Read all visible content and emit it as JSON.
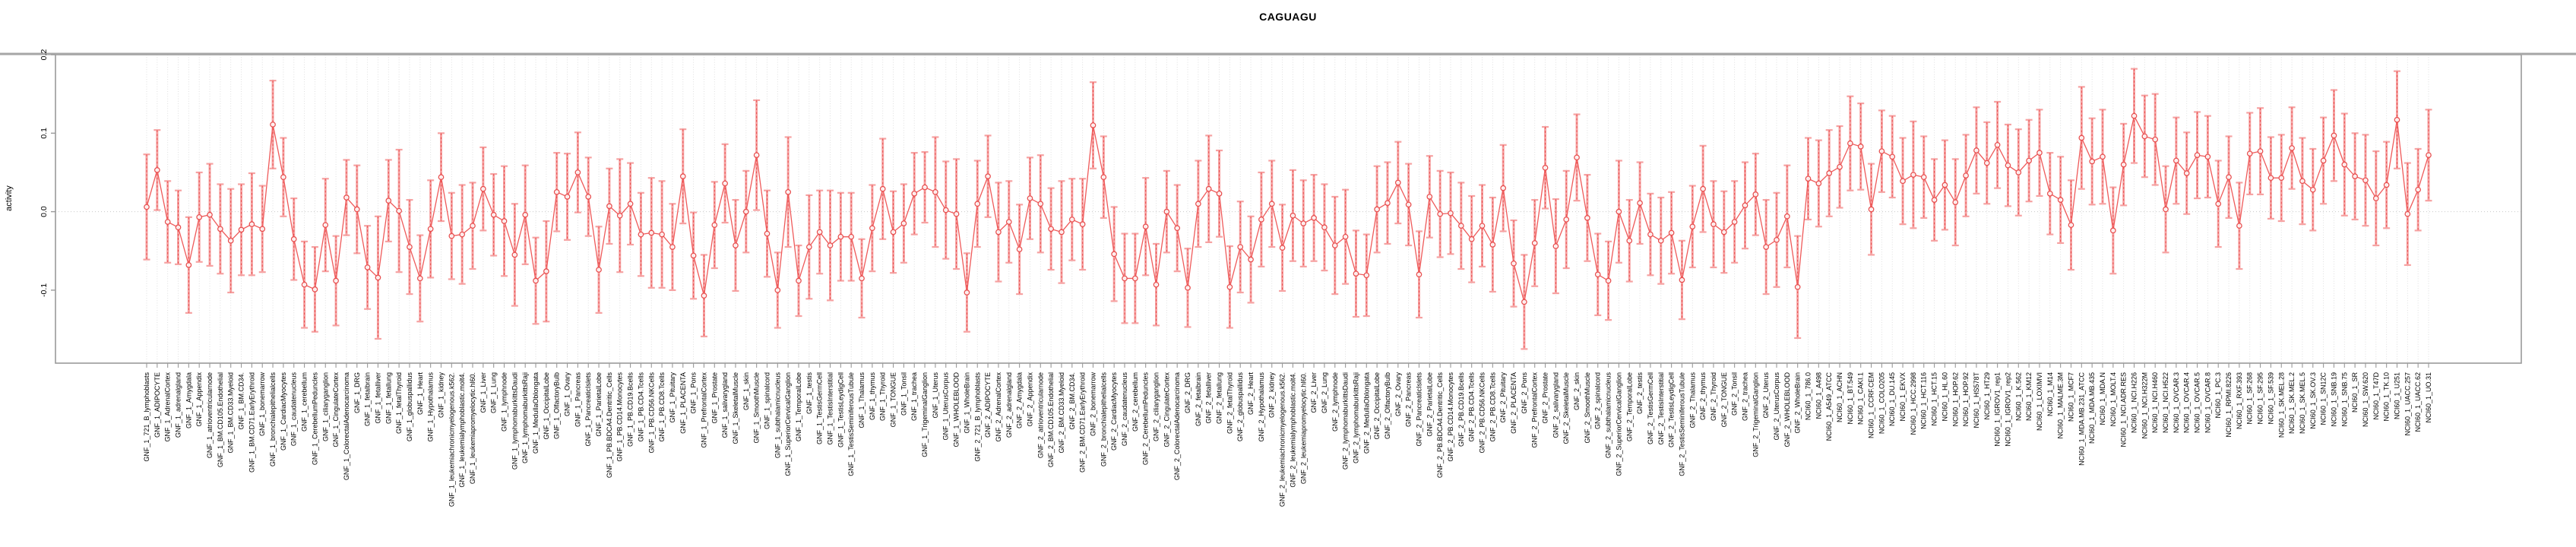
{
  "chart_data": {
    "type": "line",
    "subtype": "points-with-error-bars",
    "title": "CAGUAGU",
    "xlabel": "",
    "ylabel": "activity",
    "yticks": [
      0.2,
      0.1,
      0.0,
      -0.1
    ],
    "ylim": [
      -0.193,
      0.2
    ],
    "grid": "vertical-dotted-per-category",
    "zero_line": "dotted",
    "legend": "none",
    "colors": {
      "point": "#e85050",
      "line": "#ef5a5a",
      "whisker": "#f6a2a2",
      "dashed": "#e85050",
      "grid": "#dcdcdc",
      "zero": "#c8c8c8",
      "box": "#9a9a9a",
      "text": "#000000"
    },
    "categories": [
      "GNF_1_721_B_lymphoblasts",
      "GNF_1_ADIPOCYTE",
      "GNF_1_AdrenalCortex",
      "GNF_1_adrenalgland",
      "GNF_1_Amygdala",
      "GNF_1_Appendix",
      "GNF_1_atrioventricularnode",
      "GNF_1_BM.CD105.Endothelial",
      "GNF_1_BM.CD33.Myeloid",
      "GNF_1_BM.CD34.",
      "GNF_1_BM.CD71.EarlyErythroid",
      "GNF_1_bonemarrow",
      "GNF_1_bronchialepithelialcells",
      "GNF_1_CardiacMyocytes",
      "GNF_1_caudatenucleus",
      "GNF_1_cerebellum",
      "GNF_1_CerebellumPeduncles",
      "GNF_1_ciliaryganglion",
      "GNF_1_CingulateCortex",
      "GNF_1_ColorectalAdenocarcinoma",
      "GNF_1_DRG",
      "GNF_1_fetalbrain",
      "GNF_1_fetalliver",
      "GNF_1_fetallung",
      "GNF_1_fetalThyroid",
      "GNF_1_globuspallidus",
      "GNF_1_Heart",
      "GNF_1_Hypothalamus",
      "GNF_1_kidney",
      "GNF_1_leukemiachronicmyelogenous.k562.",
      "GNF_1_leukemialymphoblastic.molt4.",
      "GNF_1_leukemiapromyelocytic.hl60.",
      "GNF_1_Liver",
      "GNF_1_Lung",
      "GNF_1_lymphnode",
      "GNF_1_lymphomaburkittsDaudi",
      "GNF_1_lymphomaburkittsRaji",
      "GNF_1_MedullaOblongata",
      "GNF_1_OccipitalLobe",
      "GNF_1_OlfactoryBulb",
      "GNF_1_Ovary",
      "GNF_1_Pancreas",
      "GNF_1_PancreaticIslets",
      "GNF_1_ParietalLobe",
      "GNF_1_PB.BDCA4.Dentritic_Cells",
      "GNF_1_PB.CD14.Monocytes",
      "GNF_1_PB.CD19.Bcells",
      "GNF_1_PB.CD4.Tcells",
      "GNF_1_PB.CD56.NKCells",
      "GNF_1_PB.CD8.Tcells",
      "GNF_1_Pituitary",
      "GNF_1_PLACENTA",
      "GNF_1_Pons",
      "GNF_1_PrefrontalCortex",
      "GNF_1_Prostate",
      "GNF_1_salivarygland",
      "GNF_1_SkeletalMuscle",
      "GNF_1_skin",
      "GNF_1_SmoothMuscle",
      "GNF_1_spinalcord",
      "GNF_1_subthalamicnucleus",
      "GNF_1_SuperiorCervicalGanglion",
      "GNF_1_TemporalLobe",
      "GNF_1_testis",
      "GNF_1_TestisGermCell",
      "GNF_1_TestisInterstitial",
      "GNF_1_TestisLeydigCell",
      "GNF_1_TestisSeminiferousTubule",
      "GNF_1_Thalamus",
      "GNF_1_thymus",
      "GNF_1_Thyroid",
      "GNF_1_TONGUE",
      "GNF_1_Tonsil",
      "GNF_1_trachea",
      "GNF_1_TrigeminalGanglion",
      "GNF_1_Uterus",
      "GNF_1_UterusCorpus",
      "GNF_1_WHOLEBLOOD",
      "GNF_1_WholeBrain",
      "GNF_2_721_B_lymphoblasts",
      "GNF_2_ADIPOCYTE",
      "GNF_2_AdrenalCortex",
      "GNF_2_adrenalgland",
      "GNF_2_Amygdala",
      "GNF_2_Appendix",
      "GNF_2_atrioventricularnode",
      "GNF_2_BM.CD105.Endothelial",
      "GNF_2_BM.CD33.Myeloid",
      "GNF_2_BM.CD34.",
      "GNF_2_BM.CD71.EarlyErythroid",
      "GNF_2_bonemarrow",
      "GNF_2_bronchialepithelialcells",
      "GNF_2_CardiacMyocytes",
      "GNF_2_caudatenucleus",
      "GNF_2_cerebellum",
      "GNF_2_CerebellumPeduncles",
      "GNF_2_ciliaryganglion",
      "GNF_2_CingulateCortex",
      "GNF_2_ColorectalAdenocarcinoma",
      "GNF_2_DRG",
      "GNF_2_fetalbrain",
      "GNF_2_fetalliver",
      "GNF_2_fetallung",
      "GNF_2_fetalThyroid",
      "GNF_2_globuspallidus",
      "GNF_2_Heart",
      "GNF_2_Hypothalamus",
      "GNF_2_kidney",
      "GNF_2_leukemiachronicmyelogenous.k562.",
      "GNF_2_leukemialymphoblastic.molt4.",
      "GNF_2_leukemiapromyelocytic.hl60.",
      "GNF_2_Liver",
      "GNF_2_Lung",
      "GNF_2_lymphnode",
      "GNF_2_lymphomaburkittsDaudi",
      "GNF_2_lymphomaburkittsRaji",
      "GNF_2_MedullaOblongata",
      "GNF_2_OccipitalLobe",
      "GNF_2_OlfactoryBulb",
      "GNF_2_Ovary",
      "GNF_2_Pancreas",
      "GNF_2_PancreaticIslets",
      "GNF_2_ParietalLobe",
      "GNF_2_PB.BDCA4.Dentritic_Cells",
      "GNF_2_PB.CD14.Monocytes",
      "GNF_2_PB.CD19.Bcells",
      "GNF_2_PB.CD4.Tcells",
      "GNF_2_PB.CD56.NKCells",
      "GNF_2_PB.CD8.Tcells",
      "GNF_2_Pituitary",
      "GNF_2_PLACENTA",
      "GNF_2_Pons",
      "GNF_2_PrefrontalCortex",
      "GNF_2_Prostate",
      "GNF_2_salivarygland",
      "GNF_2_SkeletalMuscle",
      "GNF_2_skin",
      "GNF_2_SmoothMuscle",
      "GNF_2_spinalcord",
      "GNF_2_subthalamicnucleus",
      "GNF_2_SuperiorCervicalGanglion",
      "GNF_2_TemporalLobe",
      "GNF_2_testis",
      "GNF_2_TestisGermCell",
      "GNF_2_TestisInterstitial",
      "GNF_2_TestisLeydigCell",
      "GNF_2_TestisSeminiferousTubule",
      "GNF_2_Thalamus",
      "GNF_2_thymus",
      "GNF_2_Thyroid",
      "GNF_2_TONGUE",
      "GNF_2_Tonsil",
      "GNF_2_trachea",
      "GNF_2_TrigeminalGanglion",
      "GNF_2_Uterus",
      "GNF_2_UterusCorpus",
      "GNF_2_WHOLEBLOOD",
      "GNF_2_WholeBrain",
      "NCI60_1_786.0",
      "NCI60_1_A498",
      "NCI60_1_A549_ATCC",
      "NCI60_1_ACHN",
      "NCI60_1_BT.549",
      "NCI60_1_CAKI.1",
      "NCI60_1_CCRF.CEM",
      "NCI60_1_COLO205",
      "NCI60_1_DU.145",
      "NCI60_1_EKVX",
      "NCI60_1_HCC.2998",
      "NCI60_1_HCT.116",
      "NCI60_1_HCT.15",
      "NCI60_1_HL.60",
      "NCI60_1_HOP.62",
      "NCI60_1_HOP.92",
      "NCI60_1_HS578T",
      "NCI60_1_HT29",
      "NCI60_1_IGROV1_rep1",
      "NCI60_1_IGROV1_rep2",
      "NCI60_1_K.562",
      "NCI60_1_KM12",
      "NCI60_1_LOXIMVI",
      "NCI60_1_M14",
      "NCI60_1_MALME.3M",
      "NCI60_1_MCF7",
      "NCI60_1_MDA.MB.231_ATCC",
      "NCI60_1_MDA.MB.435",
      "NCI60_1_MDA.N",
      "NCI60_1_MOLT.4",
      "NCI60_1_NCI.ADR.RES",
      "NCI60_1_NCI.H226",
      "NCI60_1_NCI.H322M",
      "NCI60_1_NCI.H460",
      "NCI60_1_NCI.H522",
      "NCI60_1_OVCAR.3",
      "NCI60_1_OVCAR.4",
      "NCI60_1_OVCAR.5",
      "NCI60_1_OVCAR.8",
      "NCI60_1_PC.3",
      "NCI60_1_RPMI.8226",
      "NCI60_1_RXF.393",
      "NCI60_1_SF.268",
      "NCI60_1_SF.295",
      "NCI60_1_SF.539",
      "NCI60_1_SK.MEL.28",
      "NCI60_1_SK.MEL.2",
      "NCI60_1_SK.MEL.5",
      "NCI60_1_SK.OV.3",
      "NCI60_1_SN12C",
      "NCI60_1_SNB.19",
      "NCI60_1_SNB.75",
      "NCI60_1_SR",
      "NCI60_1_SW.620",
      "NCI60_1_T47D",
      "NCI60_1_TK.10",
      "NCI60_1_U251",
      "NCI60_1_UACC.257",
      "NCI60_1_UACC.62",
      "NCI60_1_UO.31"
    ],
    "values": [
      0.006,
      0.053,
      -0.013,
      -0.02,
      -0.068,
      -0.007,
      -0.004,
      -0.022,
      -0.037,
      -0.023,
      -0.016,
      -0.022,
      0.111,
      0.044,
      -0.035,
      -0.093,
      -0.099,
      -0.017,
      -0.088,
      0.018,
      0.003,
      -0.071,
      -0.084,
      0.014,
      0.001,
      -0.045,
      -0.085,
      -0.022,
      0.044,
      -0.031,
      -0.029,
      -0.018,
      0.029,
      -0.004,
      -0.012,
      -0.055,
      -0.004,
      -0.088,
      -0.076,
      0.025,
      0.019,
      0.05,
      0.019,
      -0.074,
      0.007,
      -0.005,
      0.01,
      -0.029,
      -0.027,
      -0.029,
      -0.045,
      0.045,
      -0.056,
      -0.107,
      -0.017,
      0.036,
      -0.043,
      0.0,
      0.072,
      -0.028,
      -0.1,
      0.025,
      -0.088,
      -0.045,
      -0.026,
      -0.043,
      -0.032,
      -0.032,
      -0.085,
      -0.021,
      0.029,
      -0.026,
      -0.015,
      0.023,
      0.031,
      0.025,
      0.002,
      -0.003,
      -0.103,
      0.01,
      0.045,
      -0.026,
      -0.013,
      -0.048,
      0.017,
      0.01,
      -0.022,
      -0.026,
      -0.01,
      -0.016,
      0.11,
      0.044,
      -0.054,
      -0.085,
      -0.085,
      -0.019,
      -0.093,
      0.0,
      -0.021,
      -0.097,
      0.01,
      0.029,
      0.023,
      -0.096,
      -0.045,
      -0.061,
      -0.01,
      0.01,
      -0.046,
      -0.005,
      -0.015,
      -0.008,
      -0.02,
      -0.043,
      -0.032,
      -0.079,
      -0.081,
      0.003,
      0.011,
      0.037,
      0.009,
      -0.08,
      0.019,
      -0.003,
      -0.002,
      -0.018,
      -0.035,
      -0.018,
      -0.042,
      0.03,
      -0.066,
      -0.115,
      -0.04,
      0.056,
      -0.044,
      -0.01,
      0.069,
      -0.008,
      -0.08,
      -0.088,
      0.0,
      -0.037,
      0.011,
      -0.029,
      -0.037,
      -0.027,
      -0.087,
      -0.019,
      0.029,
      -0.016,
      -0.026,
      -0.013,
      0.008,
      0.022,
      -0.045,
      -0.036,
      -0.006,
      -0.096,
      0.042,
      0.036,
      0.049,
      0.057,
      0.087,
      0.083,
      0.003,
      0.077,
      0.07,
      0.039,
      0.047,
      0.044,
      0.015,
      0.034,
      0.012,
      0.046,
      0.078,
      0.062,
      0.085,
      0.059,
      0.05,
      0.065,
      0.075,
      0.023,
      0.015,
      -0.017,
      0.094,
      0.064,
      0.07,
      -0.024,
      0.06,
      0.122,
      0.096,
      0.092,
      0.003,
      0.065,
      0.049,
      0.072,
      0.07,
      0.01,
      0.044,
      -0.018,
      0.074,
      0.077,
      0.043,
      0.043,
      0.081,
      0.039,
      0.028,
      0.065,
      0.097,
      0.06,
      0.045,
      0.04,
      0.017,
      0.034,
      0.117,
      -0.003,
      0.028,
      0.072
    ],
    "errors": [
      0.067,
      0.051,
      0.052,
      0.047,
      0.061,
      0.057,
      0.065,
      0.057,
      0.066,
      0.058,
      0.065,
      0.055,
      0.056,
      0.05,
      0.052,
      0.055,
      0.054,
      0.059,
      0.057,
      0.048,
      0.056,
      0.053,
      0.078,
      0.052,
      0.078,
      0.06,
      0.055,
      0.062,
      0.056,
      0.055,
      0.063,
      0.055,
      0.053,
      0.052,
      0.07,
      0.065,
      0.063,
      0.055,
      0.064,
      0.05,
      0.055,
      0.051,
      0.05,
      0.055,
      0.048,
      0.072,
      0.052,
      0.053,
      0.07,
      0.068,
      0.055,
      0.06,
      0.055,
      0.052,
      0.055,
      0.05,
      0.058,
      0.052,
      0.07,
      0.055,
      0.048,
      0.07,
      0.045,
      0.066,
      0.053,
      0.07,
      0.056,
      0.056,
      0.05,
      0.055,
      0.064,
      0.052,
      0.05,
      0.052,
      0.045,
      0.07,
      0.062,
      0.07,
      0.05,
      0.055,
      0.052,
      0.063,
      0.052,
      0.057,
      0.052,
      0.062,
      0.052,
      0.065,
      0.052,
      0.058,
      0.055,
      0.052,
      0.06,
      0.057,
      0.057,
      0.062,
      0.052,
      0.052,
      0.055,
      0.05,
      0.055,
      0.068,
      0.055,
      0.052,
      0.058,
      0.055,
      0.06,
      0.055,
      0.055,
      0.058,
      0.055,
      0.055,
      0.055,
      0.062,
      0.06,
      0.055,
      0.052,
      0.055,
      0.052,
      0.052,
      0.052,
      0.055,
      0.052,
      0.055,
      0.052,
      0.055,
      0.055,
      0.052,
      0.06,
      0.055,
      0.055,
      0.06,
      0.055,
      0.052,
      0.06,
      0.062,
      0.055,
      0.055,
      0.052,
      0.05,
      0.065,
      0.052,
      0.052,
      0.052,
      0.055,
      0.052,
      0.05,
      0.052,
      0.055,
      0.055,
      0.052,
      0.052,
      0.055,
      0.052,
      0.06,
      0.06,
      0.065,
      0.065,
      0.052,
      0.055,
      0.055,
      0.052,
      0.06,
      0.055,
      0.058,
      0.052,
      0.052,
      0.055,
      0.068,
      0.052,
      0.052,
      0.057,
      0.055,
      0.052,
      0.055,
      0.052,
      0.055,
      0.052,
      0.055,
      0.052,
      0.055,
      0.052,
      0.055,
      0.057,
      0.065,
      0.055,
      0.06,
      0.055,
      0.052,
      0.06,
      0.052,
      0.058,
      0.055,
      0.055,
      0.052,
      0.055,
      0.052,
      0.055,
      0.052,
      0.055,
      0.052,
      0.055,
      0.052,
      0.055,
      0.052,
      0.055,
      0.052,
      0.055,
      0.058,
      0.065,
      0.055,
      0.058,
      0.06,
      0.055,
      0.062,
      0.065,
      0.052,
      0.058
    ]
  }
}
